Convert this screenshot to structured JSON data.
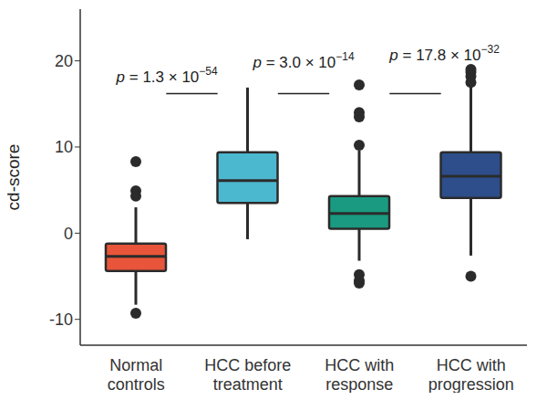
{
  "chart_data": {
    "type": "box",
    "y_label": "cd-score",
    "categories": [
      "Normal\ncontrols",
      "HCC before\ntreatment",
      "HCC with\nresponse",
      "HCC with\nprogression"
    ],
    "colors": [
      "#e8553a",
      "#4cb8cf",
      "#1a9a80",
      "#2d4e8a"
    ],
    "boxes": [
      {
        "whisker_low": -8.3,
        "q1": -4.4,
        "median": -2.7,
        "q3": -1.2,
        "whisker_high": 3.0,
        "outliers": [
          8.3,
          4.9,
          4.3,
          -9.3
        ]
      },
      {
        "whisker_low": -0.7,
        "q1": 3.5,
        "median": 6.1,
        "q3": 9.4,
        "whisker_high": 16.9,
        "outliers": []
      },
      {
        "whisker_low": -3.2,
        "q1": 0.5,
        "median": 2.3,
        "q3": 4.3,
        "whisker_high": 9.6,
        "outliers": [
          10.2,
          13.5,
          14.0,
          17.2,
          -4.8,
          -5.5,
          -5.8
        ]
      },
      {
        "whisker_low": -2.6,
        "q1": 4.1,
        "median": 6.6,
        "q3": 9.4,
        "whisker_high": 17.0,
        "outliers": [
          17.5,
          18.2,
          18.7,
          19.0,
          -5.0
        ]
      }
    ],
    "ylim": [
      -13,
      26
    ],
    "yticks": [
      -10,
      0,
      10,
      20
    ],
    "annotations": [
      {
        "from": 0,
        "to": 1,
        "y": 16.2,
        "text": "p = 1.3 × 10",
        "exponent": "−54"
      },
      {
        "from": 1,
        "to": 2,
        "y": 16.2,
        "text": "p = 3.0 × 10",
        "exponent": "−14"
      },
      {
        "from": 2,
        "to": 3,
        "y": 16.2,
        "text": "p = 17.8 × 10",
        "exponent": "−32"
      }
    ]
  }
}
